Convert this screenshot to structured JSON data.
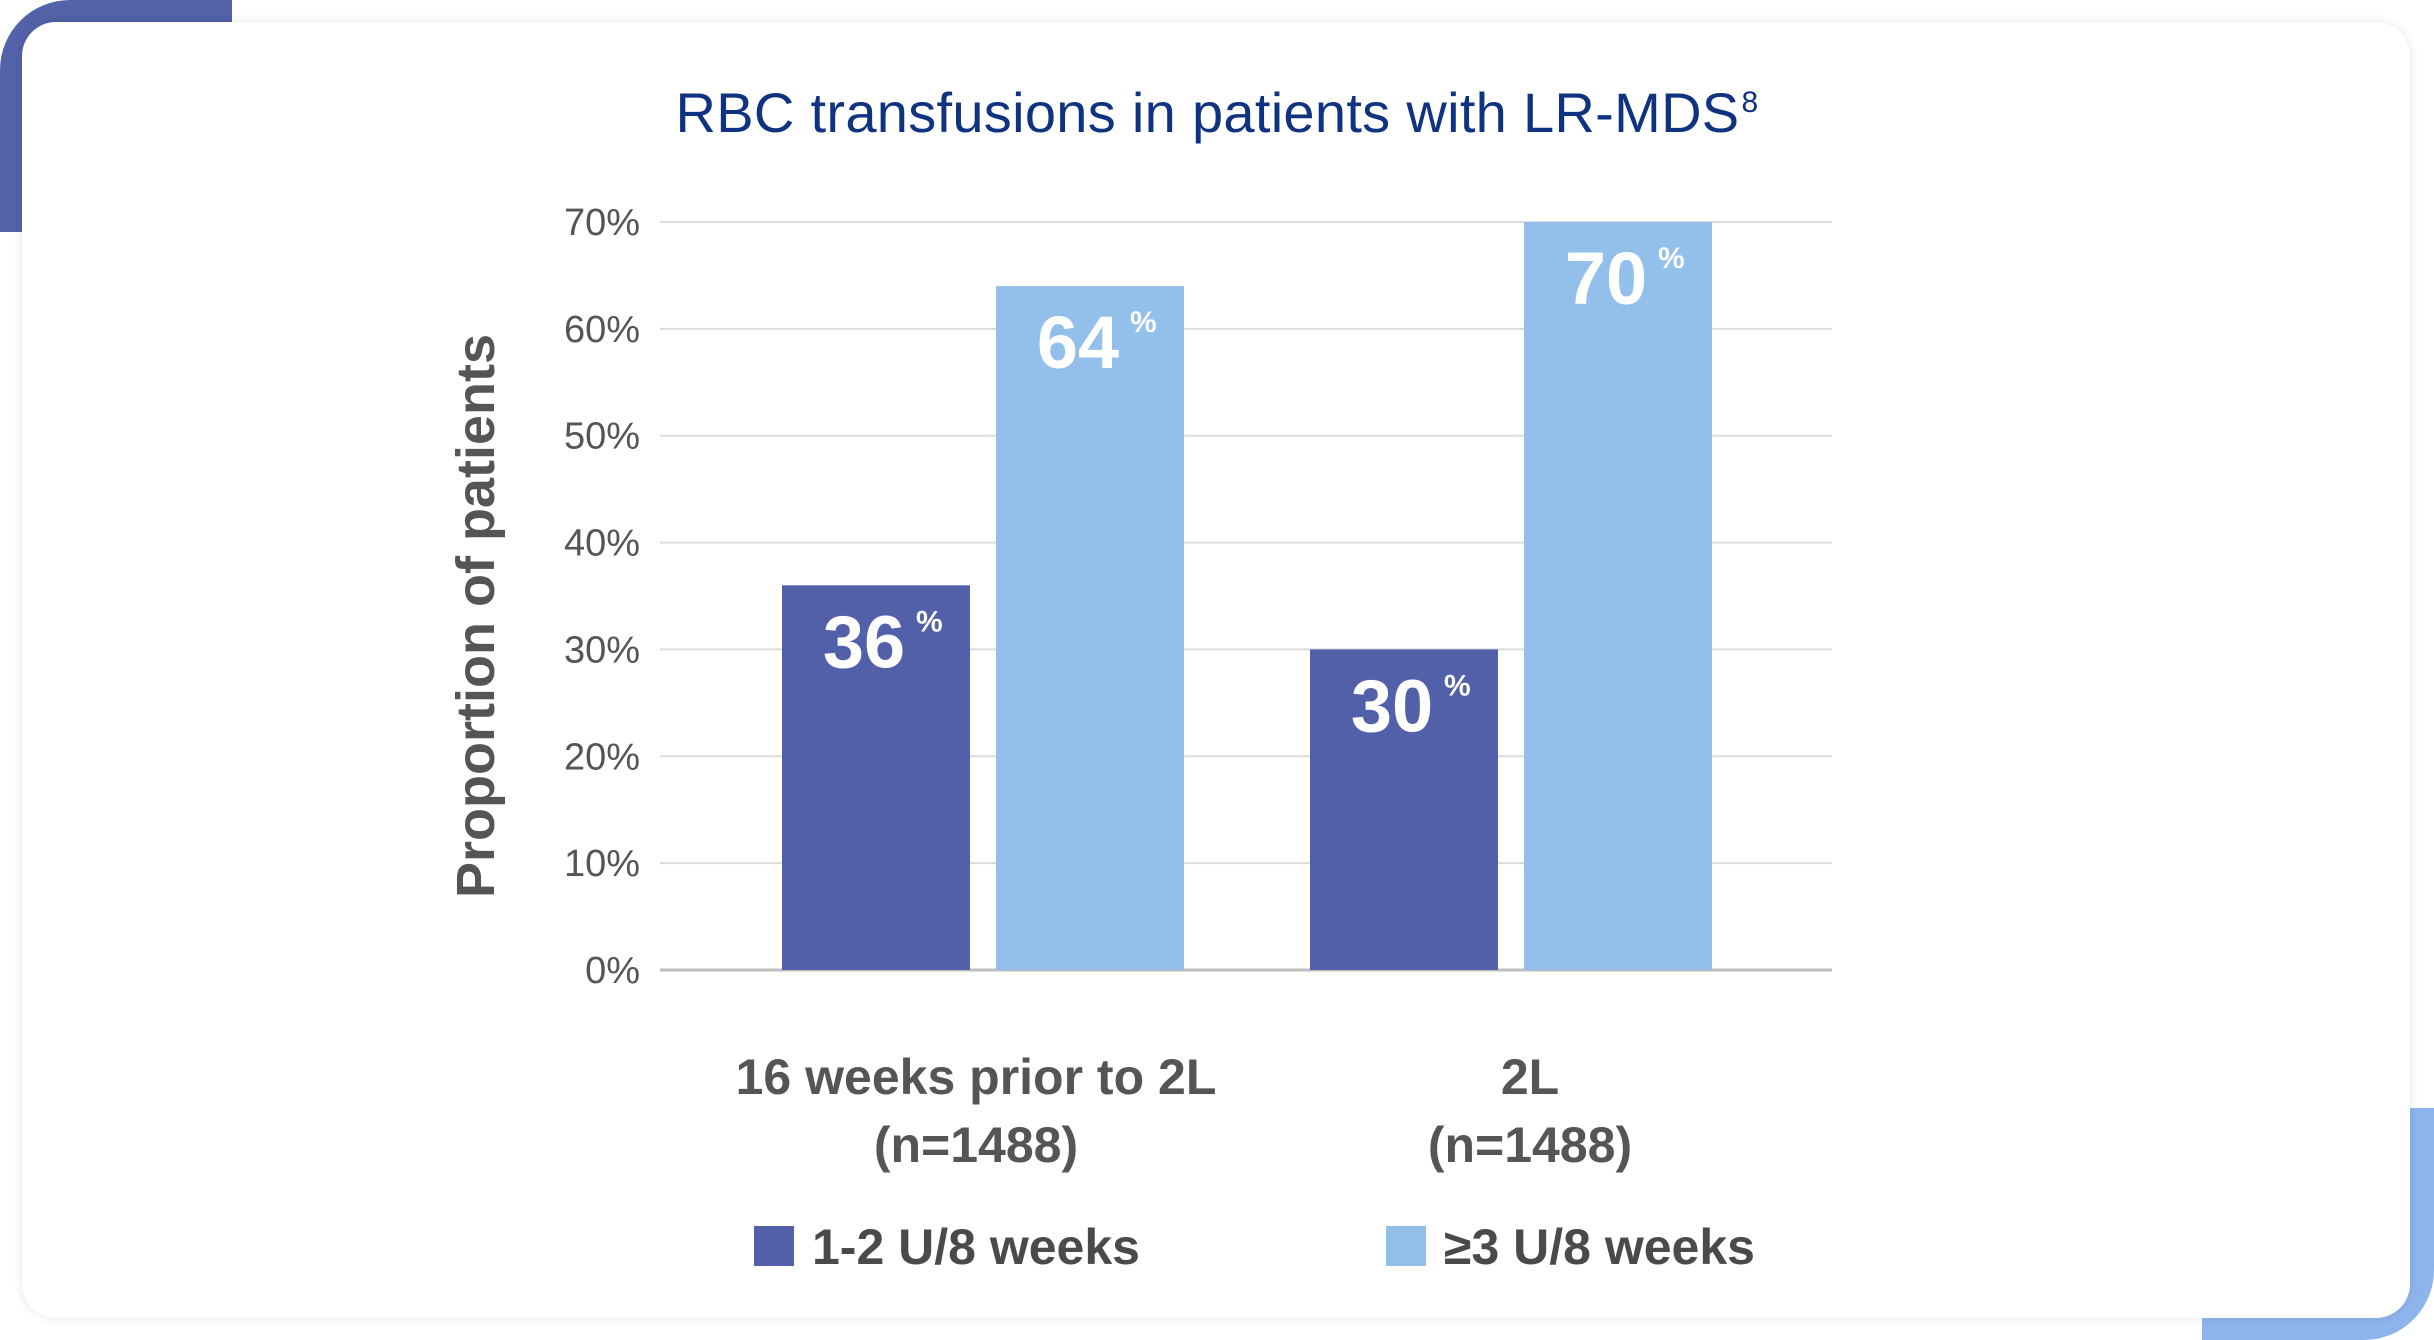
{
  "title": "RBC transfusions in patients with LR-MDS",
  "title_superscript": "8",
  "chart_data": {
    "type": "bar",
    "ylabel": "Proportion of patients",
    "xlabel": "",
    "ylim": [
      0,
      70
    ],
    "yticks": [
      0,
      10,
      20,
      30,
      40,
      50,
      60,
      70
    ],
    "ytick_labels": [
      "0%",
      "10%",
      "20%",
      "30%",
      "40%",
      "50%",
      "60%",
      "70%"
    ],
    "grid": true,
    "legend_position": "bottom",
    "categories": [
      [
        "16 weeks prior to 2L",
        "(n=1488)"
      ],
      [
        "2L",
        "(n=1488)"
      ]
    ],
    "series": [
      {
        "name": "1-2 U/8 weeks",
        "values": [
          36,
          30
        ],
        "color": "#5260a9"
      },
      {
        "name": "≥3 U/8 weeks",
        "values": [
          64,
          70
        ],
        "color": "#93bfeb"
      }
    ],
    "value_suffix": "%"
  }
}
